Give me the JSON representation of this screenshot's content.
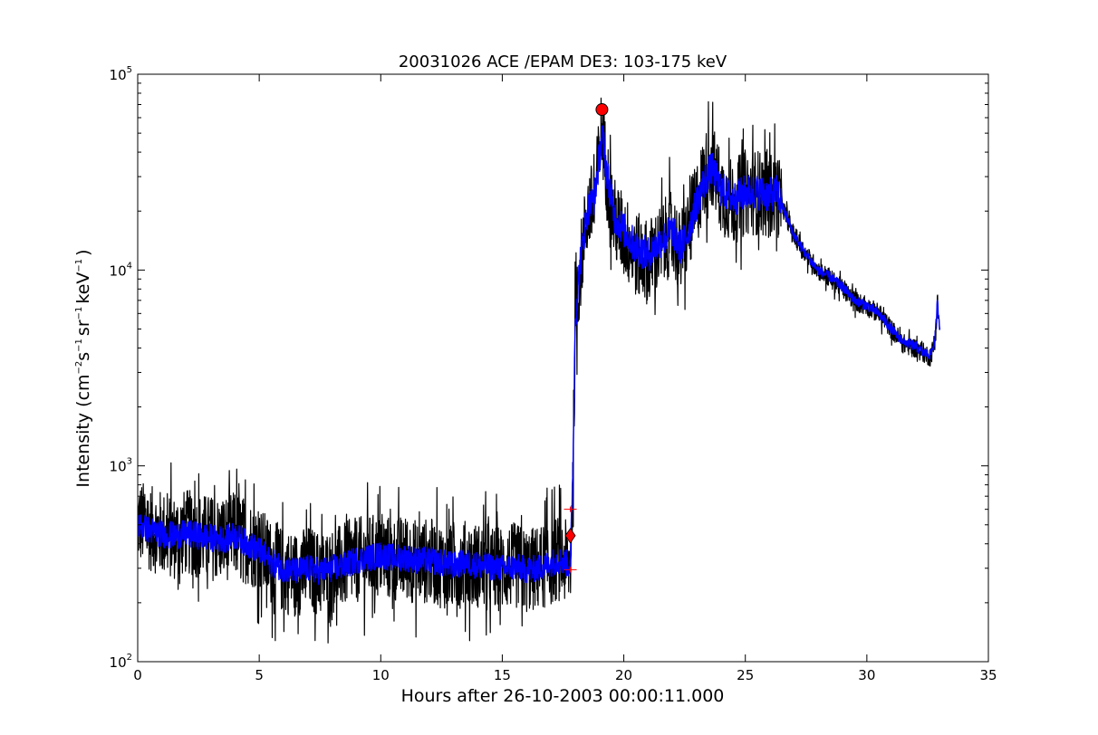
{
  "chart_data": {
    "type": "line",
    "title": "20031026 ACE /EPAM DE3: 103-175 keV",
    "xlabel": "Hours after 26-10-2003 00:00:11.000",
    "ylabel": {
      "prefix": "Intensity (cm",
      "e1": "−2",
      "s": "s",
      "e2": "−1",
      "sr": "sr",
      "e3": "−1",
      "kev": "keV",
      "e4": "−1",
      "suffix": ")"
    },
    "y_scale": "log",
    "xlim": [
      0,
      35
    ],
    "ylim": [
      100,
      100000
    ],
    "x_ticks": [
      "0",
      "5",
      "10",
      "15",
      "20",
      "25",
      "30",
      "35"
    ],
    "y_ticks": [
      {
        "base": "10",
        "exp": "2"
      },
      {
        "base": "10",
        "exp": "3"
      },
      {
        "base": "10",
        "exp": "4"
      },
      {
        "base": "10",
        "exp": "5"
      }
    ],
    "grid": false,
    "colors": {
      "raw": "#000000",
      "smoothed": "#0000ff",
      "markers": "#ff0000"
    },
    "series": [
      {
        "style": "raw-noisy",
        "color": "#000000",
        "x": [
          0,
          0.5,
          1,
          1.5,
          2,
          2.5,
          3,
          3.5,
          4,
          4.5,
          5,
          5.5,
          6,
          6.5,
          7,
          7.5,
          8,
          8.5,
          9,
          9.5,
          10,
          10.5,
          11,
          11.5,
          12,
          12.5,
          13,
          13.5,
          14,
          14.5,
          15,
          15.5,
          16,
          16.5,
          17,
          17.3,
          17.6,
          17.8,
          17.9,
          18.0,
          18.2,
          18.5,
          18.8,
          19.0,
          19.1,
          19.3,
          19.6,
          20,
          20.5,
          21,
          21.5,
          22,
          22.3,
          22.6,
          23,
          23.3,
          23.6,
          24,
          24.5,
          25,
          25.5,
          26,
          26.3,
          26.6,
          27,
          27.5,
          28,
          28.5,
          29,
          29.5,
          30,
          30.5,
          31,
          31.5,
          32,
          32.3,
          32.6,
          32.8,
          32.9,
          33.0
        ],
        "y": [
          520,
          480,
          450,
          430,
          460,
          440,
          430,
          420,
          450,
          410,
          380,
          320,
          290,
          280,
          300,
          280,
          290,
          310,
          330,
          340,
          350,
          330,
          340,
          320,
          330,
          310,
          300,
          320,
          310,
          300,
          300,
          310,
          290,
          300,
          320,
          340,
          320,
          300,
          800,
          5000,
          10000,
          20000,
          22000,
          40000,
          55000,
          30000,
          18000,
          15000,
          12000,
          11000,
          13000,
          16000,
          12000,
          15000,
          22000,
          30000,
          35000,
          25000,
          22000,
          25000,
          25000,
          24000,
          25000,
          20000,
          15000,
          12000,
          10000,
          9000,
          8000,
          7000,
          6500,
          6000,
          5000,
          4200,
          4000,
          3800,
          3600,
          4200,
          6500,
          5000
        ]
      },
      {
        "style": "smoothed",
        "color": "#0000ff",
        "x": [
          0,
          0.5,
          1,
          1.5,
          2,
          2.5,
          3,
          3.5,
          4,
          4.5,
          5,
          5.5,
          6,
          6.5,
          7,
          7.5,
          8,
          8.5,
          9,
          9.5,
          10,
          10.5,
          11,
          11.5,
          12,
          12.5,
          13,
          13.5,
          14,
          14.5,
          15,
          15.5,
          16,
          16.5,
          17,
          17.3,
          17.6,
          17.8,
          17.9,
          18.0,
          18.2,
          18.5,
          18.8,
          19.0,
          19.1,
          19.3,
          19.6,
          20,
          20.5,
          21,
          21.5,
          22,
          22.3,
          22.6,
          23,
          23.3,
          23.6,
          24,
          24.5,
          25,
          25.5,
          26,
          26.3,
          26.6,
          27,
          27.5,
          28,
          28.5,
          29,
          29.5,
          30,
          30.5,
          31,
          31.5,
          32,
          32.3,
          32.6,
          32.8,
          32.9,
          33.0
        ],
        "y": [
          500,
          470,
          450,
          440,
          450,
          440,
          430,
          420,
          440,
          400,
          370,
          320,
          300,
          290,
          300,
          290,
          300,
          310,
          330,
          340,
          350,
          340,
          340,
          330,
          330,
          320,
          310,
          320,
          310,
          305,
          300,
          305,
          295,
          300,
          320,
          330,
          320,
          310,
          900,
          5500,
          11000,
          20000,
          24000,
          38000,
          50000,
          32000,
          19000,
          16000,
          13000,
          12000,
          14000,
          16000,
          13000,
          15000,
          22000,
          28000,
          33000,
          26000,
          23000,
          25000,
          25000,
          24000,
          25000,
          20000,
          15000,
          12000,
          10000,
          9200,
          8200,
          7000,
          6600,
          6000,
          5000,
          4300,
          4100,
          3800,
          3700,
          4300,
          6800,
          5200
        ]
      }
    ],
    "markers": [
      {
        "shape": "circle",
        "x": 19.1,
        "y": 66000
      },
      {
        "shape": "diamond",
        "x": 17.8,
        "y": 440
      },
      {
        "shape": "plus",
        "x": 17.8,
        "y": 600
      },
      {
        "shape": "plus",
        "x": 17.8,
        "y": 295
      }
    ]
  }
}
